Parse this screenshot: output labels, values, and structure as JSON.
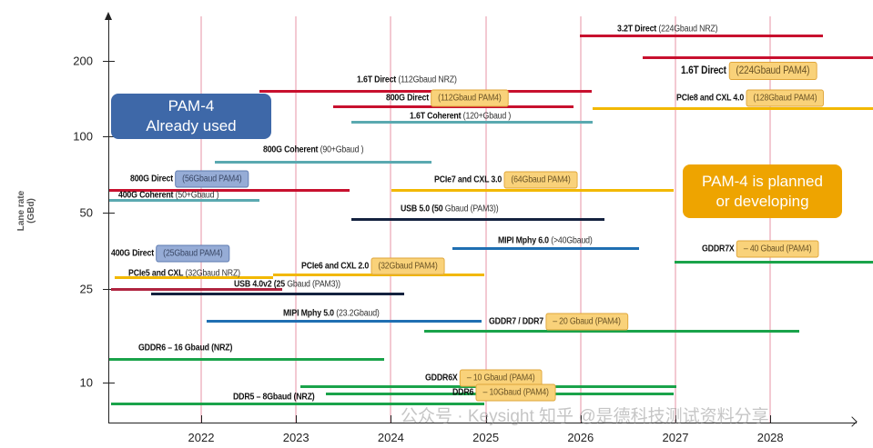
{
  "chart_data": {
    "type": "timeline",
    "ylabel": "Lane rate (GBd)",
    "yscale": "log",
    "yticks": [
      10,
      25,
      50,
      100,
      200
    ],
    "xticks": [
      2022,
      2023,
      2024,
      2025,
      2026,
      2027,
      2028
    ],
    "xlim": [
      2021.0,
      2029.1
    ],
    "grid": "vertical pink lines at each year",
    "colors": {
      "ethernet_direct": "#c8102e",
      "coherent": "#5aa9b0",
      "pcie": "#f2b800",
      "usb": "#14223f",
      "mipi": "#1f6fb2",
      "memory": "#1aa34a",
      "pam4_used": "#3e68a8",
      "pam4_planned": "#eea400"
    },
    "series": [
      {
        "name": "3.2T Direct",
        "detail": "(224Gbaud NRZ)",
        "highlight": "",
        "color": "#c8102e",
        "start": 2025.99,
        "end": 2028.55,
        "rate": 248
      },
      {
        "name": "1.6T Direct",
        "detail": "(224Gbaud PAM4)",
        "highlight": "orange",
        "color": "#c8102e",
        "start": 2026.65,
        "end": 2029.08,
        "rate": 205
      },
      {
        "name": "1.6T Direct",
        "detail": "(112Gbaud NRZ)",
        "highlight": "",
        "color": "#c8102e",
        "start": 2022.61,
        "end": 2026.12,
        "rate": 151
      },
      {
        "name": "800G Direct",
        "detail": "(112Gbaud PAM4)",
        "highlight": "orange",
        "color": "#c8102e",
        "start": 2023.39,
        "end": 2025.93,
        "rate": 131
      },
      {
        "name": "PCIe8 and CXL 4.0",
        "detail": "(128Gbaud PAM4)",
        "highlight": "orange",
        "color": "#f2b800",
        "start": 2026.13,
        "end": 2029.08,
        "rate": 129
      },
      {
        "name": "1.6T Coherent",
        "detail": "(120+Gbaud )",
        "highlight": "",
        "color": "#5aa9b0",
        "start": 2023.58,
        "end": 2026.13,
        "rate": 114
      },
      {
        "name": "800G Coherent",
        "detail": "(90+Gbaud )",
        "highlight": "",
        "color": "#5aa9b0",
        "start": 2022.14,
        "end": 2024.43,
        "rate": 79
      },
      {
        "name": "800G Direct",
        "detail": "(56Gbaud PAM4)",
        "highlight": "blue",
        "color": "#c8102e",
        "start": 2021.03,
        "end": 2023.56,
        "rate": 61
      },
      {
        "name": "PCIe7 and CXL 3.0",
        "detail": "(64Gbaud PAM4)",
        "highlight": "orange",
        "color": "#f2b800",
        "start": 2024.01,
        "end": 2026.98,
        "rate": 61
      },
      {
        "name": "400G Coherent",
        "detail": "(50+Gbaud )",
        "highlight": "",
        "color": "#5aa9b0",
        "start": 2021.03,
        "end": 2022.61,
        "rate": 56
      },
      {
        "name": "USB 5.0 (50",
        "detail": "Gbaud (PAM3))",
        "highlight": "",
        "color": "#14223f",
        "start": 2023.58,
        "end": 2026.25,
        "rate": 47
      },
      {
        "name": "MIPI Mphy 6.0",
        "detail": "(>40Gbaud)",
        "highlight": "",
        "color": "#1f6fb2",
        "start": 2024.65,
        "end": 2026.62,
        "rate": 36
      },
      {
        "name": "GDDR7X",
        "detail": "– 40 Gbaud (PAM4)",
        "highlight": "orange",
        "color": "#1aa34a",
        "start": 2026.99,
        "end": 2029.08,
        "rate": 32
      },
      {
        "name": "PCIe6 and CXL 2.0",
        "detail": "(32Gbaud PAM4)",
        "highlight": "orange",
        "color": "#f2b800",
        "start": 2022.76,
        "end": 2024.98,
        "rate": 28.3
      },
      {
        "name": "PCIe5 and CXL",
        "detail": "(32Gbaud NRZ)",
        "highlight": "",
        "color": "#f2b800",
        "start": 2021.09,
        "end": 2022.76,
        "rate": 27.8
      },
      {
        "name": "400G Direct",
        "detail": "(25Gbaud PAM4)",
        "highlight": "blue",
        "color": "#b0243f",
        "start": 2021.05,
        "end": 2022.85,
        "rate": 25
      },
      {
        "name": "USB 4.0v2 (25",
        "detail": "Gbaud (PAM3))",
        "highlight": "",
        "color": "#14223f",
        "start": 2021.47,
        "end": 2024.14,
        "rate": 23.8
      },
      {
        "name": "MIPI Mphy 5.0",
        "detail": "(23.2Gbaud)",
        "highlight": "",
        "color": "#1f6fb2",
        "start": 2022.06,
        "end": 2024.96,
        "rate": 18.7
      },
      {
        "name": "GDDR7 / DDR7",
        "detail": "– 20 Gbaud (PAM4)",
        "highlight": "orange",
        "color": "#1aa34a",
        "start": 2024.35,
        "end": 2028.31,
        "rate": 17.0
      },
      {
        "name": "GDDR6 – 16 Gbaud (NRZ)",
        "detail": "",
        "highlight": "",
        "color": "#1aa34a",
        "start": 2021.03,
        "end": 2023.93,
        "rate": 13.2
      },
      {
        "name": "GDDR6X",
        "detail": "– 10 Gbaud (PAM4)",
        "highlight": "orange",
        "color": "#1aa34a",
        "start": 2023.05,
        "end": 2027.01,
        "rate": 10.3
      },
      {
        "name": "DDR6",
        "detail": "– 10Gbaud (PAM4)",
        "highlight": "orange",
        "color": "#1aa34a",
        "start": 2023.31,
        "end": 2026.98,
        "rate": 9.6
      },
      {
        "name": "DDR5 – 8Gbaud (NRZ)",
        "detail": "",
        "highlight": "",
        "color": "#1aa34a",
        "start": 2021.05,
        "end": 2024.98,
        "rate": 8.8
      }
    ],
    "annotations": [
      {
        "line1": "PAM-4",
        "line2": "Already used",
        "color": "#3e68a8"
      },
      {
        "line1": "PAM-4 is planned",
        "line2": "or developing",
        "color": "#eea400"
      }
    ]
  },
  "watermark": "公众号 · Keysight  知乎 @是德科技测试资料分享"
}
